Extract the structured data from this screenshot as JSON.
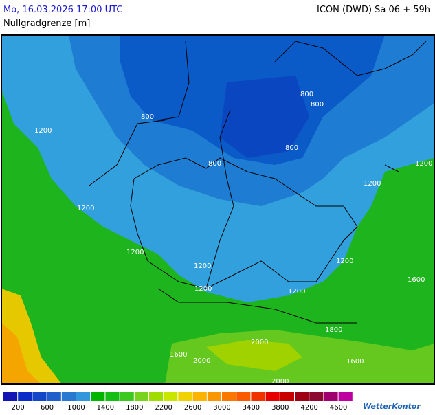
{
  "header": {
    "valid_time": "Mo, 16.03.2026 17:00 UTC",
    "model": "ICON (DWD) Sa 06 + 59h",
    "parameter": "Nullgradgrenze [m]"
  },
  "contours": [
    "800",
    "800",
    "800",
    "800",
    "800",
    "1200",
    "1200",
    "1200",
    "1200",
    "1200",
    "1200",
    "1200",
    "1200",
    "1200",
    "1600",
    "1600",
    "1600",
    "1800",
    "2000",
    "2000",
    "2000"
  ],
  "legend": {
    "labels": [
      200,
      600,
      1000,
      1400,
      1800,
      2200,
      2600,
      3000,
      3400,
      3800,
      4200,
      4600
    ],
    "colors": [
      "#1414b4",
      "#0a2dc8",
      "#1446c8",
      "#1e5fcc",
      "#2878d2",
      "#3296dc",
      "#00b400",
      "#14be14",
      "#3cc81e",
      "#78d21e",
      "#a0dc00",
      "#c8e600",
      "#f0d200",
      "#fab400",
      "#fa9600",
      "#fa7800",
      "#fa5a00",
      "#f03200",
      "#e60000",
      "#c80000",
      "#a00014",
      "#8c0a32",
      "#a0006e",
      "#be00a0"
    ]
  },
  "brand": "WetterKontor"
}
